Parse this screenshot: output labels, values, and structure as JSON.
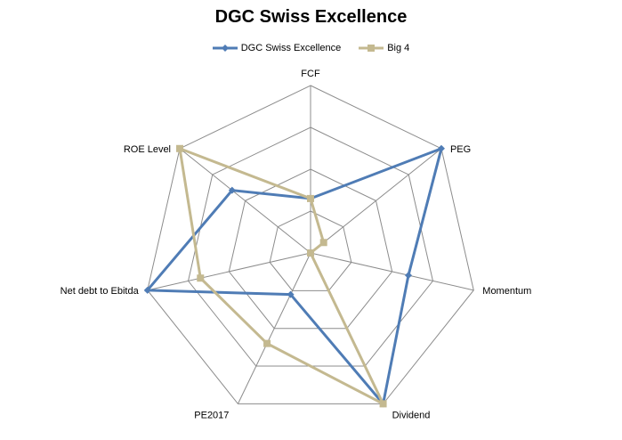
{
  "chart_data": {
    "type": "radar",
    "title": "DGC Swiss Excellence",
    "categories": [
      "FCF",
      "PEG",
      "Momentum",
      "Dividend",
      "PE2017",
      "Net debt to Ebitda",
      "ROE Level"
    ],
    "rmax": 4,
    "rings": 4,
    "grid": true,
    "legend_position": "top",
    "series": [
      {
        "name": "DGC Swiss Excellence",
        "values": [
          1.3,
          4,
          2.4,
          4,
          1.1,
          4,
          2.4
        ],
        "color": "#4f7cb5",
        "marker": "diamond"
      },
      {
        "name": "Big 4",
        "values": [
          1.3,
          0.4,
          0,
          4,
          2.4,
          2.7,
          4
        ],
        "color": "#c4b990",
        "marker": "square"
      }
    ]
  }
}
